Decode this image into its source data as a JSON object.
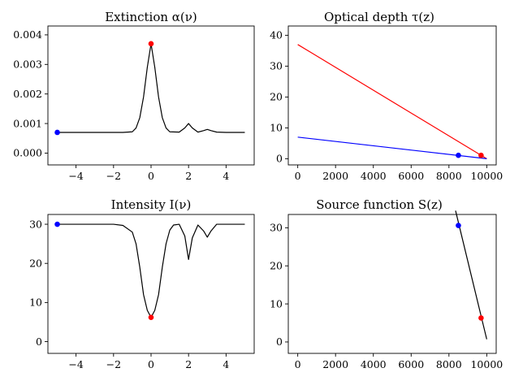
{
  "figure": {
    "background": "#ffffff"
  },
  "chart_data": [
    {
      "id": "extinction",
      "type": "line",
      "title": "Extinction α(ν)",
      "xlim": [
        -5.5,
        5.5
      ],
      "ylim": [
        -0.0004,
        0.0043
      ],
      "xticks": [
        -4,
        -2,
        0,
        2,
        4
      ],
      "xtick_labels": [
        "−4",
        "−2",
        "0",
        "2",
        "4"
      ],
      "yticks": [
        0,
        0.001,
        0.002,
        0.003,
        0.004
      ],
      "ytick_labels": [
        "0.000",
        "0.001",
        "0.002",
        "0.003",
        "0.004"
      ],
      "series": [
        {
          "color": "#000000",
          "x": [
            -5,
            -4,
            -3,
            -2,
            -1.5,
            -1,
            -0.8,
            -0.6,
            -0.4,
            -0.2,
            0,
            0.2,
            0.4,
            0.6,
            0.8,
            1,
            1.5,
            1.8,
            2,
            2.2,
            2.5,
            2.8,
            3,
            3.2,
            3.5,
            4,
            5
          ],
          "y": [
            0.0007,
            0.0007,
            0.0007,
            0.0007,
            0.0007,
            0.00072,
            0.00085,
            0.0012,
            0.0019,
            0.0029,
            0.0037,
            0.0029,
            0.0019,
            0.0012,
            0.00085,
            0.00072,
            0.00071,
            0.00085,
            0.001,
            0.00085,
            0.00071,
            0.00076,
            0.0008,
            0.00076,
            0.00071,
            0.0007,
            0.0007
          ]
        }
      ],
      "markers": [
        {
          "x": -5,
          "y": 0.0007,
          "color": "#0000ff"
        },
        {
          "x": 0,
          "y": 0.0037,
          "color": "#ff0000"
        }
      ]
    },
    {
      "id": "optical-depth",
      "type": "line",
      "title": "Optical depth τ(z)",
      "xlim": [
        -500,
        10500
      ],
      "ylim": [
        -2,
        43
      ],
      "xticks": [
        0,
        2000,
        4000,
        6000,
        8000,
        10000
      ],
      "xtick_labels": [
        "0",
        "2000",
        "4000",
        "6000",
        "8000",
        "10000"
      ],
      "yticks": [
        0,
        10,
        20,
        30,
        40
      ],
      "ytick_labels": [
        "0",
        "10",
        "20",
        "30",
        "40"
      ],
      "series": [
        {
          "color": "#ff0000",
          "x": [
            0,
            10000
          ],
          "y": [
            37,
            0
          ]
        },
        {
          "color": "#0000ff",
          "x": [
            0,
            10000
          ],
          "y": [
            7,
            0
          ]
        }
      ],
      "markers": [
        {
          "x": 8500,
          "y": 1.1,
          "color": "#0000ff"
        },
        {
          "x": 9700,
          "y": 1.1,
          "color": "#ff0000"
        }
      ]
    },
    {
      "id": "intensity",
      "type": "line",
      "title": "Intensity I(ν)",
      "xlim": [
        -5.5,
        5.5
      ],
      "ylim": [
        -3,
        32.5
      ],
      "xticks": [
        -4,
        -2,
        0,
        2,
        4
      ],
      "xtick_labels": [
        "−4",
        "−2",
        "0",
        "2",
        "4"
      ],
      "yticks": [
        0,
        10,
        20,
        30
      ],
      "ytick_labels": [
        "0",
        "10",
        "20",
        "30"
      ],
      "series": [
        {
          "color": "#000000",
          "x": [
            -5,
            -4,
            -3,
            -2,
            -1.5,
            -1,
            -0.8,
            -0.6,
            -0.4,
            -0.2,
            0,
            0.2,
            0.4,
            0.6,
            0.8,
            1,
            1.2,
            1.5,
            1.8,
            2,
            2.2,
            2.5,
            2.8,
            3,
            3.2,
            3.5,
            4,
            5
          ],
          "y": [
            30,
            30,
            30,
            30,
            29.7,
            28,
            25,
            19,
            12,
            8,
            6.2,
            8,
            12,
            19,
            25,
            28.5,
            29.8,
            30,
            27,
            21,
            26.5,
            29.8,
            28.3,
            26.7,
            28.3,
            30,
            30,
            30
          ]
        }
      ],
      "markers": [
        {
          "x": -5,
          "y": 30,
          "color": "#0000ff"
        },
        {
          "x": 0,
          "y": 6.2,
          "color": "#ff0000"
        }
      ]
    },
    {
      "id": "source-function",
      "type": "line",
      "title": "Source function S(z)",
      "xlim": [
        -500,
        10500
      ],
      "ylim": [
        -3,
        33.5
      ],
      "xticks": [
        0,
        2000,
        4000,
        6000,
        8000,
        10000
      ],
      "xtick_labels": [
        "0",
        "2000",
        "4000",
        "6000",
        "8000",
        "10000"
      ],
      "yticks": [
        0,
        10,
        20,
        30
      ],
      "ytick_labels": [
        "0",
        "10",
        "20",
        "30"
      ],
      "series": [
        {
          "color": "#000000",
          "x": [
            8350,
            10000
          ],
          "y": [
            34.5,
            0.7
          ]
        }
      ],
      "markers": [
        {
          "x": 8500,
          "y": 30.6,
          "color": "#0000ff"
        },
        {
          "x": 9700,
          "y": 6.3,
          "color": "#ff0000"
        }
      ]
    }
  ]
}
